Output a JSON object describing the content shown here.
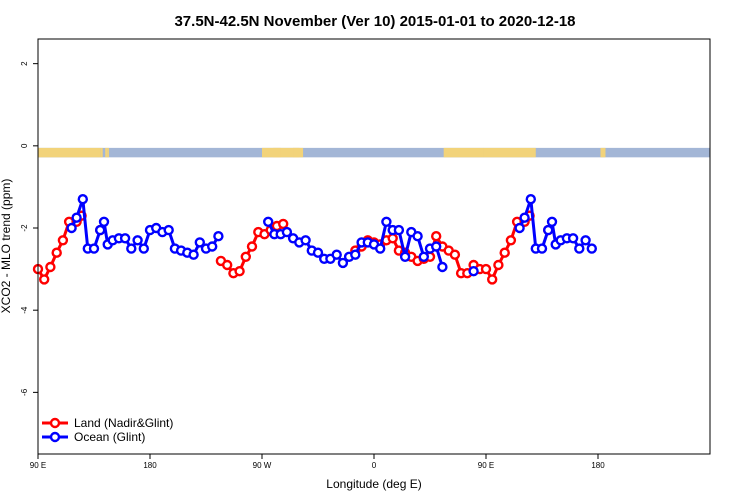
{
  "chart_data": {
    "type": "line",
    "title": "37.5N-42.5N November (Ver 10)   2015-01-01 to 2020-12-18",
    "xlabel": "Longitude (deg E)",
    "ylabel": "XCO2 - MLO trend (ppm)",
    "xlim": [
      90,
      630
    ],
    "ylim": [
      -7.5,
      2.6
    ],
    "x_ticks": [
      {
        "value": 90,
        "label": "90 E"
      },
      {
        "value": 180,
        "label": "180"
      },
      {
        "value": 270,
        "label": "90 W"
      },
      {
        "value": 360,
        "label": "0"
      },
      {
        "value": 450,
        "label": "90 E"
      },
      {
        "value": 540,
        "label": "180"
      }
    ],
    "y_ticks": [
      {
        "value": 2,
        "label": "2"
      },
      {
        "value": 0,
        "label": "0"
      },
      {
        "value": -2,
        "label": "-2"
      },
      {
        "value": -4,
        "label": "-4"
      },
      {
        "value": -6,
        "label": "-6"
      }
    ],
    "x_data_note_hidden": "",
    "land_ocean_band": {
      "y_top": -0.05,
      "y_bottom": -0.28,
      "land_color": "#f2d37a",
      "ocean_color": "#a3b6d6",
      "land_segments": [
        [
          90,
          140
        ],
        [
          140,
          142
        ],
        [
          144,
          146
        ],
        [
          146,
          147
        ],
        [
          270,
          303
        ],
        [
          279,
          285
        ],
        [
          295,
          300
        ],
        [
          416,
          448
        ],
        [
          448,
          490
        ],
        [
          542,
          546
        ]
      ]
    },
    "legend": {
      "position": "bottom-left",
      "entries": [
        {
          "name": "Land (Nadir&Glint)",
          "color": "#ff0000"
        },
        {
          "name": "Ocean (Glint)",
          "color": "#0000ff"
        }
      ]
    },
    "series": [
      {
        "name": "Land (Nadir&Glint)",
        "color": "#ff0000",
        "segments": [
          [
            [
              90,
              -3.0
            ],
            [
              95,
              -3.25
            ],
            [
              100,
              -2.95
            ],
            [
              105,
              -2.6
            ],
            [
              110,
              -2.3
            ],
            [
              115,
              -1.85
            ],
            [
              121,
              -1.85
            ],
            [
              125,
              -1.7
            ]
          ],
          [
            [
              140,
              -2.05
            ]
          ],
          [
            [
              237,
              -2.8
            ],
            [
              242,
              -2.9
            ],
            [
              247,
              -3.1
            ],
            [
              252,
              -3.05
            ],
            [
              257,
              -2.7
            ],
            [
              262,
              -2.45
            ],
            [
              267,
              -2.1
            ],
            [
              272,
              -2.15
            ],
            [
              277,
              -2.05
            ],
            [
              282,
              -1.95
            ],
            [
              287,
              -1.9
            ]
          ],
          [
            [
              345,
              -2.55
            ],
            [
              350,
              -2.45
            ],
            [
              355,
              -2.3
            ],
            [
              360,
              -2.35
            ],
            [
              365,
              -2.4
            ],
            [
              370,
              -2.3
            ],
            [
              375,
              -2.25
            ],
            [
              380,
              -2.55
            ],
            [
              385,
              -2.6
            ],
            [
              390,
              -2.7
            ],
            [
              395,
              -2.8
            ],
            [
              400,
              -2.75
            ],
            [
              405,
              -2.7
            ],
            [
              410,
              -2.2
            ],
            [
              415,
              -2.45
            ],
            [
              420,
              -2.55
            ],
            [
              425,
              -2.65
            ],
            [
              430,
              -3.1
            ],
            [
              435,
              -3.1
            ],
            [
              440,
              -2.9
            ],
            [
              445,
              -3.0
            ],
            [
              450,
              -3.0
            ],
            [
              455,
              -3.25
            ],
            [
              460,
              -2.9
            ],
            [
              465,
              -2.6
            ],
            [
              470,
              -2.3
            ],
            [
              475,
              -1.85
            ],
            [
              481,
              -1.85
            ],
            [
              485,
              -1.7
            ]
          ],
          [
            [
              500,
              -2.05
            ]
          ]
        ]
      },
      {
        "name": "Ocean (Glint)",
        "color": "#0000ff",
        "segments": [
          [
            [
              117,
              -2.0
            ],
            [
              121,
              -1.75
            ],
            [
              126,
              -1.3
            ],
            [
              130,
              -2.5
            ],
            [
              135,
              -2.5
            ],
            [
              140,
              -2.05
            ],
            [
              143,
              -1.85
            ],
            [
              146,
              -2.4
            ],
            [
              150,
              -2.3
            ],
            [
              155,
              -2.25
            ],
            [
              160,
              -2.25
            ],
            [
              165,
              -2.5
            ],
            [
              170,
              -2.3
            ],
            [
              175,
              -2.5
            ],
            [
              180,
              -2.05
            ],
            [
              185,
              -2.0
            ],
            [
              190,
              -2.1
            ],
            [
              195,
              -2.05
            ],
            [
              200,
              -2.5
            ],
            [
              205,
              -2.55
            ],
            [
              210,
              -2.6
            ],
            [
              215,
              -2.65
            ],
            [
              220,
              -2.35
            ],
            [
              225,
              -2.5
            ],
            [
              230,
              -2.45
            ],
            [
              235,
              -2.2
            ]
          ],
          [
            [
              275,
              -1.85
            ],
            [
              280,
              -2.15
            ],
            [
              285,
              -2.15
            ],
            [
              290,
              -2.1
            ],
            [
              295,
              -2.25
            ],
            [
              300,
              -2.35
            ],
            [
              305,
              -2.3
            ],
            [
              310,
              -2.55
            ],
            [
              315,
              -2.6
            ],
            [
              320,
              -2.75
            ],
            [
              325,
              -2.75
            ],
            [
              330,
              -2.65
            ],
            [
              335,
              -2.85
            ],
            [
              340,
              -2.7
            ],
            [
              345,
              -2.65
            ],
            [
              350,
              -2.35
            ],
            [
              355,
              -2.35
            ],
            [
              360,
              -2.4
            ],
            [
              365,
              -2.5
            ],
            [
              370,
              -1.85
            ],
            [
              375,
              -2.05
            ],
            [
              380,
              -2.05
            ],
            [
              385,
              -2.7
            ],
            [
              390,
              -2.1
            ],
            [
              395,
              -2.2
            ],
            [
              400,
              -2.7
            ],
            [
              405,
              -2.5
            ],
            [
              410,
              -2.45
            ],
            [
              415,
              -2.95
            ]
          ],
          [
            [
              440,
              -3.05
            ]
          ],
          [
            [
              477,
              -2.0
            ],
            [
              481,
              -1.75
            ],
            [
              486,
              -1.3
            ],
            [
              490,
              -2.5
            ],
            [
              495,
              -2.5
            ],
            [
              500,
              -2.05
            ],
            [
              503,
              -1.85
            ],
            [
              506,
              -2.4
            ],
            [
              510,
              -2.3
            ],
            [
              515,
              -2.25
            ],
            [
              520,
              -2.25
            ],
            [
              525,
              -2.5
            ],
            [
              530,
              -2.3
            ],
            [
              535,
              -2.5
            ]
          ]
        ]
      }
    ]
  }
}
